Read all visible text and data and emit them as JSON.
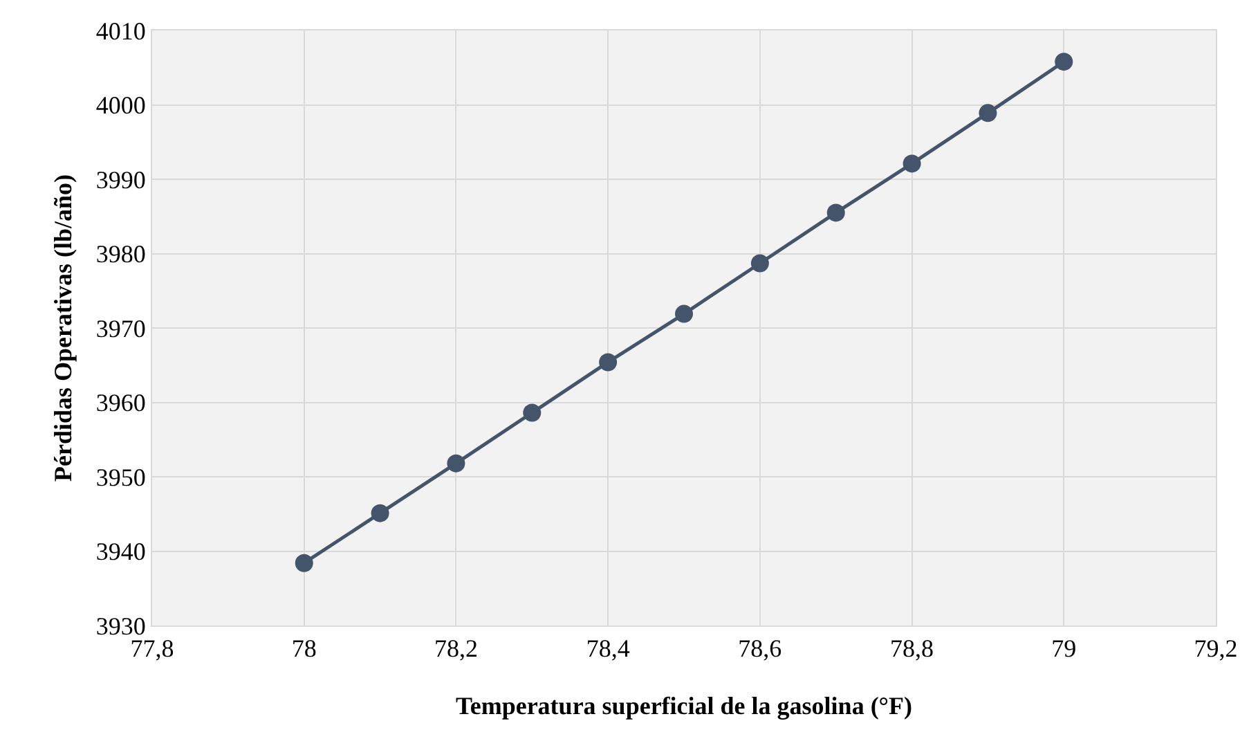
{
  "chart_data": {
    "type": "line",
    "xlabel": "Temperatura superficial de la gasolina (°F)",
    "ylabel": "Pérdidas Operativas (lb/año)",
    "x": [
      78,
      78.1,
      78.2,
      78.3,
      78.4,
      78.5,
      78.6,
      78.7,
      78.8,
      78.9,
      79
    ],
    "series": [
      {
        "color": "#44546a",
        "values": [
          3938.4,
          3945.1,
          3951.8,
          3958.6,
          3965.4,
          3971.9,
          3978.7,
          3985.5,
          3992.1,
          3998.9,
          4005.8
        ]
      }
    ],
    "xlim": [
      77.8,
      79.2
    ],
    "xticks": [
      {
        "value": 77.8,
        "label": "77,8"
      },
      78,
      {
        "value": 78.2,
        "label": "78,2"
      },
      {
        "value": 78.4,
        "label": "78,4"
      },
      {
        "value": 78.6,
        "label": "78,6"
      },
      {
        "value": 78.8,
        "label": "78,8"
      },
      79,
      {
        "value": 79.2,
        "label": "79,2"
      }
    ],
    "ylim": [
      3930,
      4010
    ],
    "yticks": [
      3930,
      3940,
      3950,
      3960,
      3970,
      3980,
      3990,
      4000,
      4010
    ],
    "grid": true,
    "marker": "circle",
    "line_style": "solid"
  }
}
